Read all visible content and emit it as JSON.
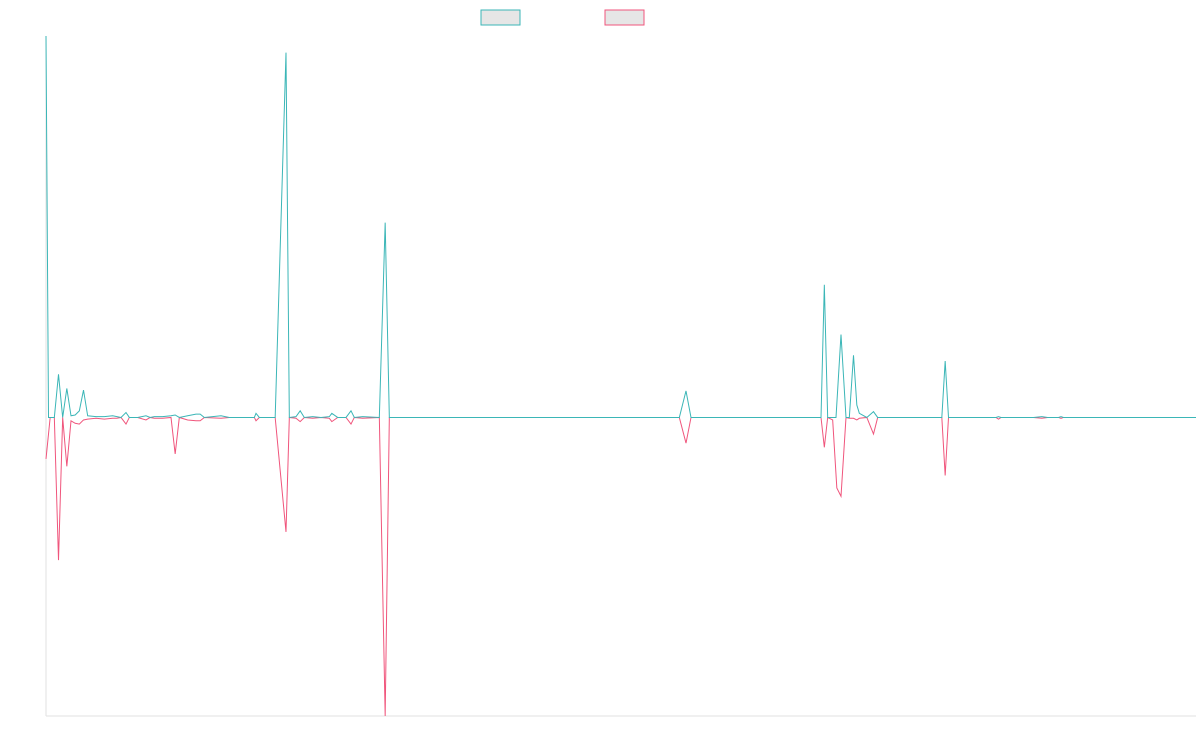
{
  "colors": {
    "series_a": "#3bb6b7",
    "series_b": "#f0557c",
    "legend_fill": "#e6e6e6",
    "axis": "#e2e2e2",
    "background": "#ffffff"
  },
  "chart_data": {
    "type": "line",
    "title": "",
    "xlabel": "",
    "ylabel": "",
    "grid": false,
    "legend_position": "top-center",
    "x_range": [
      0,
      138
    ],
    "ylim": [
      -36,
      46
    ],
    "series": [
      {
        "color": "#3bb6b7",
        "points": [
          [
            0,
            46
          ],
          [
            0.3,
            0
          ],
          [
            1,
            0
          ],
          [
            1.5,
            5.2
          ],
          [
            2,
            0
          ],
          [
            2.5,
            3.5
          ],
          [
            3,
            0.2
          ],
          [
            3.5,
            0.3
          ],
          [
            4,
            0.8
          ],
          [
            4.5,
            3.3
          ],
          [
            5,
            0.2
          ],
          [
            6,
            0.1
          ],
          [
            7,
            0.1
          ],
          [
            8,
            0.2
          ],
          [
            8.5,
            0.1
          ],
          [
            9,
            0
          ],
          [
            9.6,
            0.6
          ],
          [
            10,
            0
          ],
          [
            11,
            0
          ],
          [
            12,
            0.2
          ],
          [
            12.5,
            0
          ],
          [
            13,
            0.1
          ],
          [
            14,
            0.1
          ],
          [
            15,
            0.2
          ],
          [
            15.5,
            0.3
          ],
          [
            16,
            0
          ],
          [
            17,
            0.2
          ],
          [
            18,
            0.4
          ],
          [
            18.5,
            0.4
          ],
          [
            19,
            0
          ],
          [
            21,
            0.2
          ],
          [
            22,
            0
          ],
          [
            25,
            0
          ],
          [
            25.2,
            0.5
          ],
          [
            25.6,
            0
          ],
          [
            27.5,
            0
          ],
          [
            28.8,
            44
          ],
          [
            29.2,
            0
          ],
          [
            30,
            0.1
          ],
          [
            30.5,
            0.8
          ],
          [
            31,
            0
          ],
          [
            32,
            0.1
          ],
          [
            33,
            0
          ],
          [
            34,
            0.1
          ],
          [
            34.3,
            0.5
          ],
          [
            35,
            0
          ],
          [
            36,
            0
          ],
          [
            36.6,
            0.8
          ],
          [
            37,
            0
          ],
          [
            38,
            0.1
          ],
          [
            40,
            0
          ],
          [
            40.7,
            23.5
          ],
          [
            41.2,
            0
          ],
          [
            42,
            0
          ],
          [
            76,
            0
          ],
          [
            76.8,
            3.2
          ],
          [
            77.4,
            0
          ],
          [
            93,
            0
          ],
          [
            93.4,
            16
          ],
          [
            93.8,
            0
          ],
          [
            94.8,
            0
          ],
          [
            95.4,
            10
          ],
          [
            96,
            0
          ],
          [
            96.4,
            0
          ],
          [
            96.9,
            7.5
          ],
          [
            97.3,
            1.5
          ],
          [
            97.6,
            0.5
          ],
          [
            98.5,
            0
          ],
          [
            99.3,
            0.7
          ],
          [
            99.8,
            0
          ],
          [
            107.5,
            0
          ],
          [
            107.9,
            6.8
          ],
          [
            108.3,
            0
          ],
          [
            114,
            0
          ],
          [
            114.3,
            0.1
          ],
          [
            114.6,
            0
          ],
          [
            118.5,
            0
          ],
          [
            119.5,
            0.1
          ],
          [
            120.2,
            0
          ],
          [
            121.5,
            0
          ],
          [
            121.8,
            0.1
          ],
          [
            122.1,
            0
          ],
          [
            138,
            0
          ]
        ]
      },
      {
        "color": "#f0557c",
        "points": [
          [
            0,
            -5
          ],
          [
            0.5,
            0
          ],
          [
            1,
            0
          ],
          [
            1.5,
            -17.2
          ],
          [
            2,
            0
          ],
          [
            2.5,
            -5.9
          ],
          [
            3,
            -0.4
          ],
          [
            3.5,
            -0.7
          ],
          [
            4,
            -0.8
          ],
          [
            4.5,
            -0.3
          ],
          [
            5,
            -0.2
          ],
          [
            6,
            -0.1
          ],
          [
            7,
            -0.2
          ],
          [
            8,
            -0.1
          ],
          [
            8.5,
            -0.1
          ],
          [
            9,
            0
          ],
          [
            9.6,
            -0.8
          ],
          [
            10,
            0
          ],
          [
            11,
            0
          ],
          [
            12,
            -0.3
          ],
          [
            12.5,
            0
          ],
          [
            13,
            -0.1
          ],
          [
            14,
            -0.1
          ],
          [
            15,
            0
          ],
          [
            15.5,
            -4.4
          ],
          [
            16,
            0
          ],
          [
            17,
            -0.3
          ],
          [
            18,
            -0.4
          ],
          [
            18.5,
            -0.4
          ],
          [
            19,
            0
          ],
          [
            21,
            -0.1
          ],
          [
            22,
            0
          ],
          [
            25,
            0
          ],
          [
            25.2,
            -0.4
          ],
          [
            25.6,
            0
          ],
          [
            27.5,
            0
          ],
          [
            28.8,
            -13.8
          ],
          [
            29.2,
            0
          ],
          [
            30,
            -0.1
          ],
          [
            30.5,
            -0.5
          ],
          [
            31,
            0
          ],
          [
            32,
            -0.1
          ],
          [
            33,
            0
          ],
          [
            34,
            -0.1
          ],
          [
            34.3,
            -0.5
          ],
          [
            35,
            0
          ],
          [
            36,
            0
          ],
          [
            36.6,
            -0.8
          ],
          [
            37,
            0
          ],
          [
            38,
            -0.1
          ],
          [
            40,
            0
          ],
          [
            40.7,
            -36
          ],
          [
            41.2,
            0
          ],
          [
            42,
            0
          ],
          [
            76,
            0
          ],
          [
            76.8,
            -3.1
          ],
          [
            77.4,
            0
          ],
          [
            93,
            0
          ],
          [
            93.4,
            -3.6
          ],
          [
            93.8,
            0
          ],
          [
            94.4,
            -0.3
          ],
          [
            94.9,
            -8.5
          ],
          [
            95.4,
            -9.5
          ],
          [
            96,
            0
          ],
          [
            96.4,
            -0.1
          ],
          [
            96.9,
            -0.1
          ],
          [
            97.3,
            -0.3
          ],
          [
            97.6,
            -0.1
          ],
          [
            98.5,
            0
          ],
          [
            99.3,
            -2
          ],
          [
            99.8,
            0
          ],
          [
            107.5,
            0
          ],
          [
            107.9,
            -7
          ],
          [
            108.3,
            0
          ],
          [
            114,
            0
          ],
          [
            114.3,
            -0.2
          ],
          [
            114.6,
            0
          ],
          [
            118.5,
            0
          ],
          [
            119.5,
            -0.1
          ],
          [
            120.2,
            0
          ],
          [
            121.5,
            0
          ],
          [
            121.8,
            -0.1
          ],
          [
            122.1,
            0
          ],
          [
            138,
            0
          ]
        ]
      }
    ]
  }
}
